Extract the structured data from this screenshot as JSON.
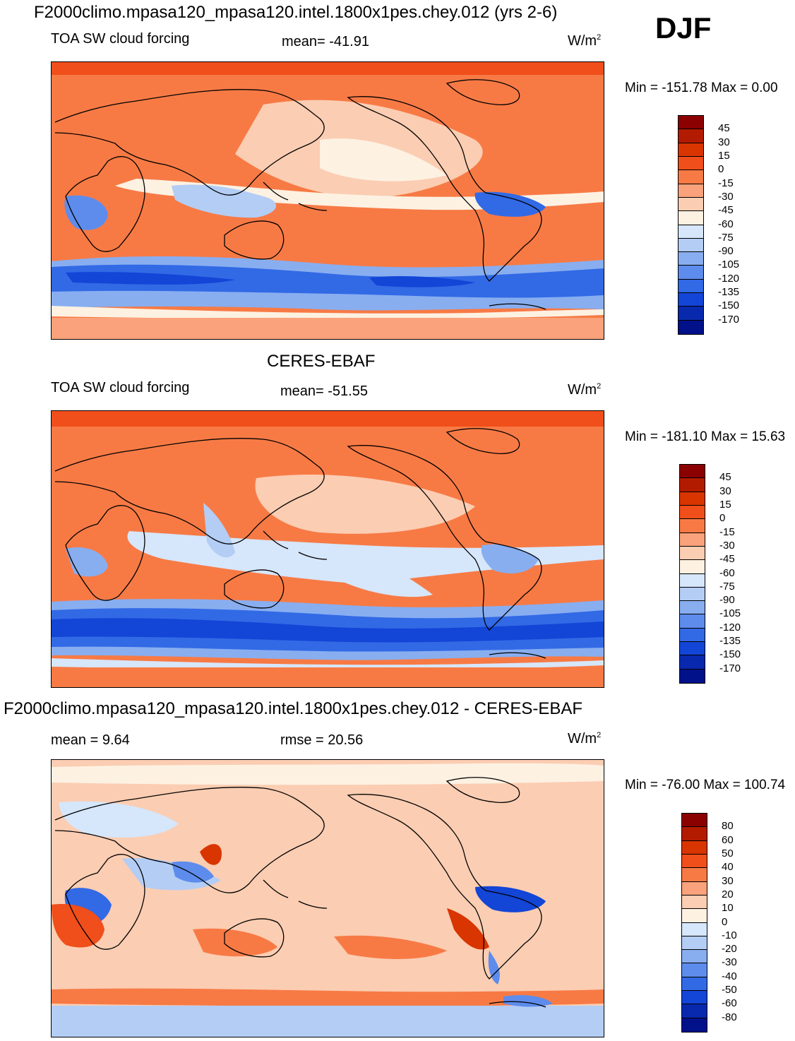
{
  "season": "DJF",
  "panels": [
    {
      "title": "F2000climo.mpasa120_mpasa120.intel.1800x1pes.chey.012 (yrs 2-6)",
      "variable": "TOA SW cloud forcing",
      "stat1": "mean= -41.91",
      "stat2": "",
      "units_base": "W/m",
      "units_exp": "2",
      "minmax": "Min = -151.78 Max =    0.00",
      "colorbar": {
        "labels": [
          "45",
          "30",
          "15",
          "0",
          "-15",
          "-30",
          "-45",
          "-60",
          "-75",
          "-90",
          "-105",
          "-120",
          "-135",
          "-150",
          "-170"
        ],
        "colors": [
          "#8b0000",
          "#b31b00",
          "#d93500",
          "#f04e1a",
          "#f77a45",
          "#f9a27b",
          "#fbcdb2",
          "#fdf1e2",
          "#d6e6fb",
          "#b3cdf5",
          "#88aef0",
          "#5e8cec",
          "#3269e5",
          "#1345d6",
          "#0828ae",
          "#00118a"
        ]
      }
    },
    {
      "title": "CERES-EBAF",
      "variable": "TOA SW cloud forcing",
      "stat1": "mean= -51.55",
      "stat2": "",
      "units_base": "W/m",
      "units_exp": "2",
      "minmax": "Min = -181.10 Max =  15.63",
      "colorbar": {
        "labels": [
          "45",
          "30",
          "15",
          "0",
          "-15",
          "-30",
          "-45",
          "-60",
          "-75",
          "-90",
          "-105",
          "-120",
          "-135",
          "-150",
          "-170"
        ],
        "colors": [
          "#8b0000",
          "#b31b00",
          "#d93500",
          "#f04e1a",
          "#f77a45",
          "#f9a27b",
          "#fbcdb2",
          "#fdf1e2",
          "#d6e6fb",
          "#b3cdf5",
          "#88aef0",
          "#5e8cec",
          "#3269e5",
          "#1345d6",
          "#0828ae",
          "#00118a"
        ]
      }
    },
    {
      "title": "F2000climo.mpasa120_mpasa120.intel.1800x1pes.chey.012 - CERES-EBAF",
      "variable": "mean =    9.64",
      "stat1": "rmse =  20.56",
      "stat2": "",
      "units_base": "W/m",
      "units_exp": "2",
      "minmax": "Min = -76.00 Max = 100.74",
      "colorbar": {
        "labels": [
          "80",
          "60",
          "50",
          "40",
          "30",
          "20",
          "10",
          "0",
          "-10",
          "-20",
          "-30",
          "-40",
          "-50",
          "-60",
          "-80"
        ],
        "colors": [
          "#8b0000",
          "#b31b00",
          "#d93500",
          "#f04e1a",
          "#f77a45",
          "#f9a27b",
          "#fbcdb2",
          "#fdf1e2",
          "#d6e6fb",
          "#b3cdf5",
          "#88aef0",
          "#5e8cec",
          "#3269e5",
          "#1345d6",
          "#0828ae",
          "#00118a"
        ]
      }
    }
  ]
}
